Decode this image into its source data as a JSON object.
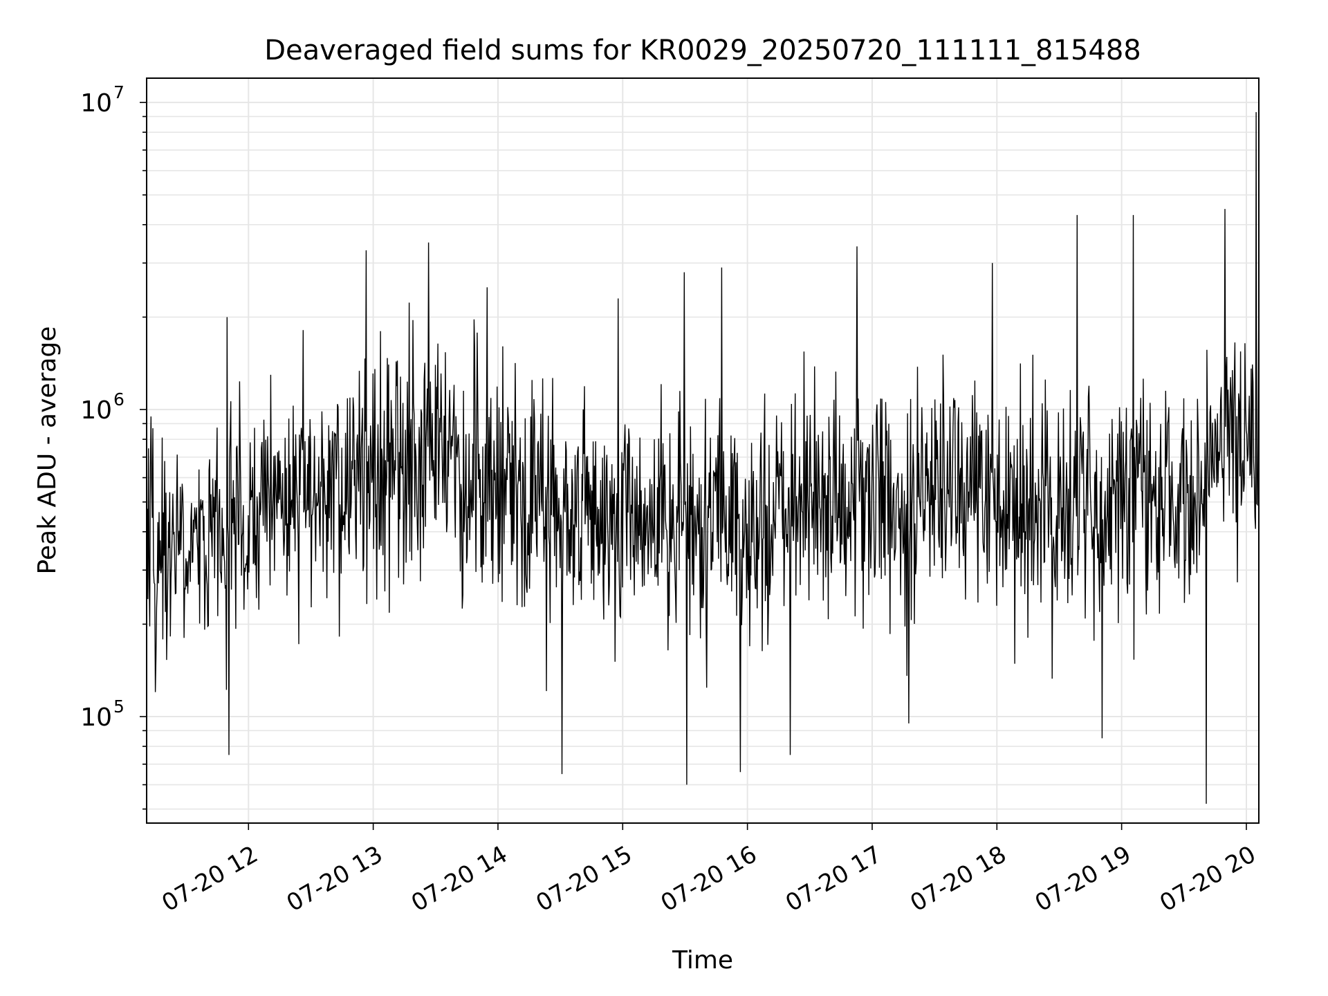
{
  "chart_data": {
    "type": "line",
    "title": "Deaveraged field sums for KR0029_20250720_111111_815488",
    "xlabel": "Time",
    "ylabel": "Peak ADU - average",
    "x_range": [
      "2025-07-20 11:11",
      "2025-07-20 20:06"
    ],
    "ylim": [
      45000,
      12000000
    ],
    "yscale": "log",
    "grid": true,
    "line_color": "#000000",
    "grid_color": "#e6e6e6",
    "x_ticks": [
      {
        "value": "2025-07-20 12:00",
        "label": "07-20 12"
      },
      {
        "value": "2025-07-20 13:00",
        "label": "07-20 13"
      },
      {
        "value": "2025-07-20 14:00",
        "label": "07-20 14"
      },
      {
        "value": "2025-07-20 15:00",
        "label": "07-20 15"
      },
      {
        "value": "2025-07-20 16:00",
        "label": "07-20 16"
      },
      {
        "value": "2025-07-20 17:00",
        "label": "07-20 17"
      },
      {
        "value": "2025-07-20 18:00",
        "label": "07-20 18"
      },
      {
        "value": "2025-07-20 19:00",
        "label": "07-20 19"
      },
      {
        "value": "2025-07-20 20:00",
        "label": "07-20 20"
      }
    ],
    "y_ticks": [
      {
        "value": 100000,
        "base": "10",
        "exp": "5"
      },
      {
        "value": 1000000,
        "base": "10",
        "exp": "6"
      },
      {
        "value": 10000000,
        "base": "10",
        "exp": "7"
      }
    ],
    "series": [
      {
        "x_start": "2025-07-20 11:11",
        "x_step_minutes": 0.3,
        "level_profile": [
          [
            "2025-07-20 11:11",
            330000
          ],
          [
            "2025-07-20 11:40",
            380000
          ],
          [
            "2025-07-20 12:10",
            500000
          ],
          [
            "2025-07-20 12:40",
            560000
          ],
          [
            "2025-07-20 13:10",
            650000
          ],
          [
            "2025-07-20 13:30",
            700000
          ],
          [
            "2025-07-20 14:00",
            520000
          ],
          [
            "2025-07-20 14:40",
            470000
          ],
          [
            "2025-07-20 15:10",
            430000
          ],
          [
            "2025-07-20 15:40",
            420000
          ],
          [
            "2025-07-20 16:10",
            450000
          ],
          [
            "2025-07-20 16:50",
            520000
          ],
          [
            "2025-07-20 17:20",
            470000
          ],
          [
            "2025-07-20 17:45",
            560000
          ],
          [
            "2025-07-20 18:30",
            480000
          ],
          [
            "2025-07-20 19:00",
            560000
          ],
          [
            "2025-07-20 19:30",
            520000
          ],
          [
            "2025-07-20 19:45",
            800000
          ],
          [
            "2025-07-20 20:06",
            750000
          ]
        ],
        "spikes": [
          [
            "2025-07-20 11:50",
            2000000
          ],
          [
            "2025-07-20 11:51",
            75000
          ],
          [
            "2025-07-20 12:57",
            3300000
          ],
          [
            "2025-07-20 13:27",
            3500000
          ],
          [
            "2025-07-20 13:55",
            2500000
          ],
          [
            "2025-07-20 14:31",
            65000
          ],
          [
            "2025-07-20 14:58",
            2300000
          ],
          [
            "2025-07-20 15:30",
            2800000
          ],
          [
            "2025-07-20 15:31",
            60000
          ],
          [
            "2025-07-20 15:48",
            2900000
          ],
          [
            "2025-07-20 15:57",
            66000
          ],
          [
            "2025-07-20 16:21",
            75000
          ],
          [
            "2025-07-20 16:53",
            3400000
          ],
          [
            "2025-07-20 17:18",
            95000
          ],
          [
            "2025-07-20 17:58",
            3000000
          ],
          [
            "2025-07-20 18:39",
            4300000
          ],
          [
            "2025-07-20 18:51",
            85000
          ],
          [
            "2025-07-20 19:06",
            4300000
          ],
          [
            "2025-07-20 19:41",
            52000
          ],
          [
            "2025-07-20 19:50",
            4500000
          ],
          [
            "2025-07-20 20:05",
            9300000
          ]
        ]
      }
    ]
  }
}
